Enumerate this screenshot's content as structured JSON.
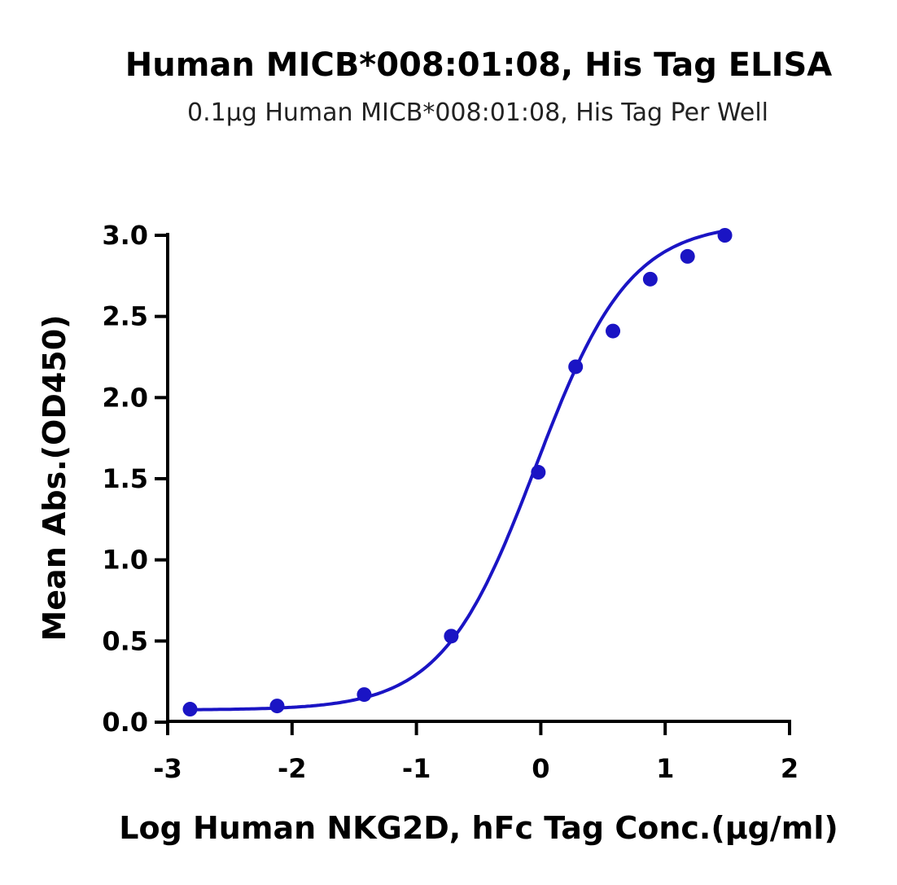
{
  "chart_data": {
    "type": "scatter",
    "title": "Human MICB*008:01:08, His Tag ELISA",
    "subtitle": "0.1μg Human MICB*008:01:08, His Tag Per Well",
    "xlabel": "Log Human NKG2D, hFc Tag Conc.(μg/ml)",
    "ylabel": "Mean Abs.(OD450)",
    "xlim": [
      -3,
      2
    ],
    "ylim": [
      0,
      3
    ],
    "x_ticks": [
      "-3",
      "-2",
      "-1",
      "0",
      "1",
      "2"
    ],
    "y_ticks": [
      "0.0",
      "0.5",
      "1.0",
      "1.5",
      "2.0",
      "2.5",
      "3.0"
    ],
    "grid": false,
    "color": "#1a14c4",
    "series": [
      {
        "x": [
          -2.82,
          -2.12,
          -1.42,
          -0.72,
          -0.02,
          0.28,
          0.58,
          0.88,
          1.18,
          1.48
        ],
        "y": [
          0.08,
          0.1,
          0.17,
          0.53,
          1.54,
          2.19,
          2.41,
          2.73,
          2.87,
          3.0
        ],
        "fit": "sigmoidal"
      }
    ]
  }
}
